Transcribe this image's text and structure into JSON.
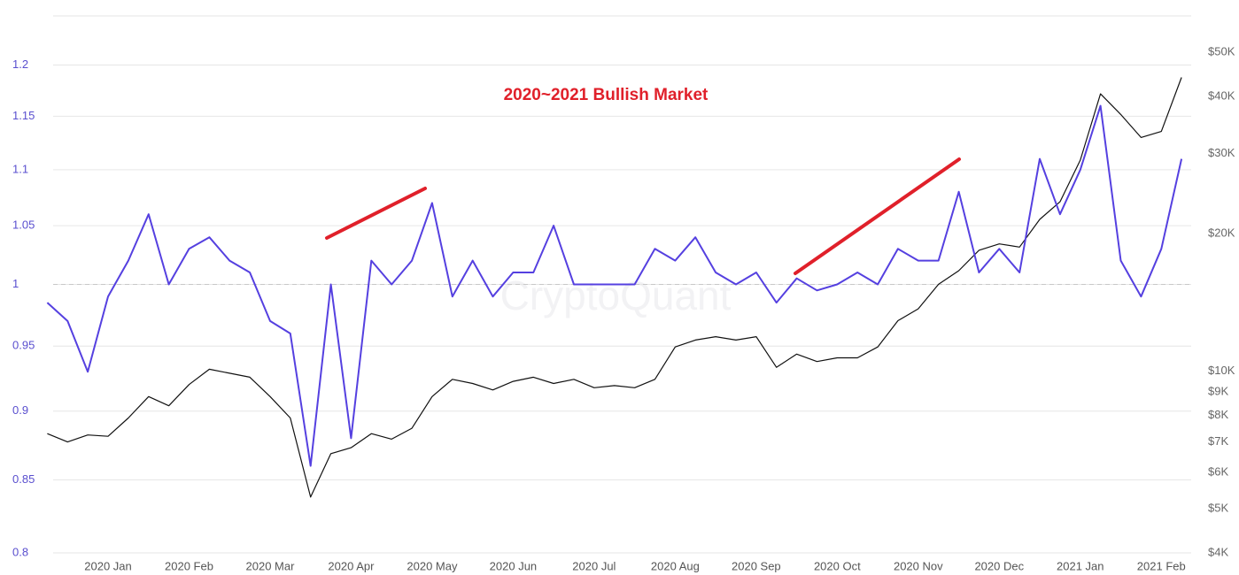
{
  "chart_data": {
    "type": "line",
    "title": "2020~2021 Bullish Market",
    "watermark": "CryptoQuant",
    "categories": [
      null,
      null,
      null,
      "2020 Jan",
      null,
      null,
      null,
      "2020 Feb",
      null,
      null,
      null,
      "2020 Mar",
      null,
      null,
      null,
      "2020 Apr",
      null,
      null,
      null,
      "2020 May",
      null,
      null,
      null,
      "2020 Jun",
      null,
      null,
      null,
      "2020 Jul",
      null,
      null,
      null,
      "2020 Aug",
      null,
      null,
      null,
      "2020 Sep",
      null,
      null,
      null,
      "2020 Oct",
      null,
      null,
      null,
      "2020 Nov",
      null,
      null,
      null,
      "2020 Dec",
      null,
      null,
      null,
      "2021 Jan",
      null,
      null,
      null,
      "2021 Feb",
      null
    ],
    "series": [
      {
        "color": "#5540e0",
        "values": [
          0.985,
          0.97,
          0.93,
          0.99,
          1.02,
          1.06,
          1.0,
          1.03,
          1.04,
          1.02,
          1.01,
          0.97,
          0.96,
          0.86,
          1.0,
          0.88,
          1.02,
          1.0,
          1.02,
          1.07,
          0.99,
          1.02,
          0.99,
          1.01,
          1.01,
          1.05,
          1.0,
          1.0,
          1.0,
          1.0,
          1.03,
          1.02,
          1.04,
          1.01,
          1.0,
          1.01,
          0.985,
          1.005,
          0.995,
          1.0,
          1.01,
          1.0,
          1.03,
          1.02,
          1.02,
          1.08,
          1.01,
          1.03,
          1.01,
          1.11,
          1.06,
          1.1,
          1.16,
          1.02,
          0.99,
          1.03,
          1.11
        ]
      },
      {
        "color": "#111111",
        "axis": "y2",
        "values": [
          7300,
          7000,
          7250,
          7200,
          7900,
          8800,
          8400,
          9350,
          10100,
          9900,
          9700,
          8800,
          7900,
          5300,
          6600,
          6800,
          7300,
          7100,
          7500,
          8800,
          9600,
          9400,
          9100,
          9500,
          9700,
          9400,
          9600,
          9200,
          9300,
          9200,
          9600,
          11300,
          11700,
          11900,
          11700,
          11900,
          10200,
          10900,
          10500,
          10700,
          10700,
          11300,
          12900,
          13700,
          15500,
          16600,
          18400,
          19000,
          18700,
          21500,
          23500,
          29000,
          40500,
          36500,
          32500,
          33500,
          44000
        ]
      }
    ],
    "log_scale": true,
    "ylim": [
      0.8,
      1.25
    ],
    "yticks": [
      0.8,
      0.85,
      0.9,
      0.95,
      1,
      1.05,
      1.1,
      1.15,
      1.2
    ],
    "y2_log_scale": true,
    "y2lim": [
      4000,
      60000
    ],
    "y2ticks": [
      {
        "value": 4000,
        "label": "$4K"
      },
      {
        "value": 5000,
        "label": "$5K"
      },
      {
        "value": 6000,
        "label": "$6K"
      },
      {
        "value": 7000,
        "label": "$7K"
      },
      {
        "value": 8000,
        "label": "$8K"
      },
      {
        "value": 9000,
        "label": "$9K"
      },
      {
        "value": 10000,
        "label": "$10K"
      },
      {
        "value": 20000,
        "label": "$20K"
      },
      {
        "value": 30000,
        "label": "$30K"
      },
      {
        "value": 40000,
        "label": "$40K"
      },
      {
        "value": 50000,
        "label": "$50K"
      }
    ],
    "reference_line": 1,
    "grid": true
  }
}
